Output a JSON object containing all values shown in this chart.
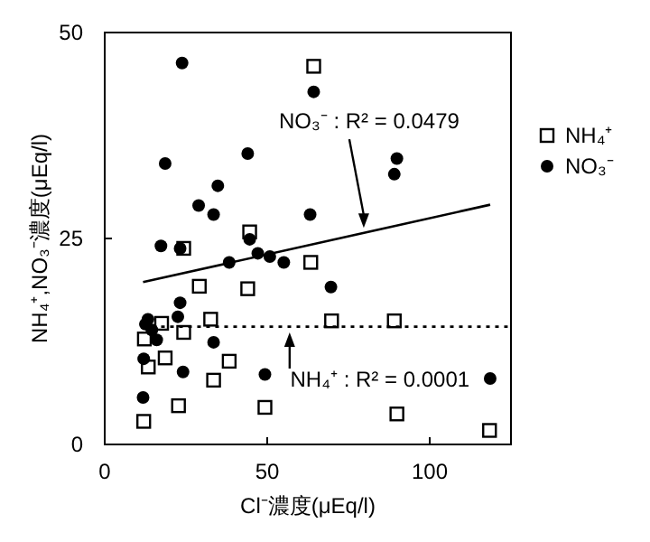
{
  "chart_data": {
    "type": "scatter",
    "xlabel": "Cl⁻濃度(μEq/l)",
    "ylabel": "NH₄⁺,NO₃⁻濃度(μEq/l)",
    "xlim": [
      0,
      125
    ],
    "ylim": [
      0,
      50
    ],
    "xticks": [
      0,
      50,
      100
    ],
    "yticks": [
      0,
      25,
      50
    ],
    "grid": false,
    "legend": "right",
    "series": [
      {
        "name": "NH₄⁺",
        "color": "#000000",
        "marker": "square",
        "x": [
          64.3,
          44.6,
          24.3,
          63.4,
          29.1,
          44,
          17.5,
          32.6,
          69.8,
          89.1,
          24.3,
          12.2,
          18.6,
          13.4,
          38.3,
          33.5,
          22.7,
          49.3,
          89.9,
          12,
          118.4
        ],
        "values": [
          45.9,
          25.8,
          23.8,
          22.1,
          19.2,
          18.9,
          14.7,
          15.2,
          15,
          15,
          13.6,
          12.8,
          10.5,
          9.4,
          10.1,
          7.8,
          4.7,
          4.5,
          3.7,
          2.8,
          1.7
        ]
      },
      {
        "name": "NO₃⁻",
        "color": "#000000",
        "marker": "circle",
        "x": [
          23.8,
          64.3,
          18.6,
          44,
          89.9,
          89.1,
          34.8,
          28.9,
          33.5,
          63.2,
          17.3,
          23.2,
          44.6,
          38.3,
          47.1,
          50.8,
          55.1,
          69.6,
          23.2,
          22.5,
          13.3,
          12.5,
          14.5,
          16,
          33.5,
          12,
          24.1,
          49.3,
          118.6,
          11.8
        ],
        "values": [
          46.3,
          42.8,
          34.1,
          35.3,
          34.7,
          32.8,
          31.4,
          29,
          27.9,
          27.9,
          24.1,
          23.8,
          24.9,
          22.1,
          23.2,
          22.8,
          22.1,
          19.1,
          17.2,
          15.5,
          15.2,
          14.6,
          13.9,
          12.7,
          12.4,
          10.4,
          8.8,
          8.5,
          8,
          5.7
        ]
      },
      {
        "type": "line",
        "color": "#000000",
        "line_style": "solid",
        "x": [
          11.8,
          118.6
        ],
        "values": [
          19.7,
          29.1
        ]
      },
      {
        "type": "line",
        "color": "#000000",
        "line_style": "dotted",
        "x": [
          11.8,
          124
        ],
        "values": [
          14.3,
          14.3
        ]
      }
    ],
    "annotations": [
      {
        "text": "NO₃⁻ : R² = 0.0479",
        "x": 79.7,
        "y": 26.3
      },
      {
        "text": "NH₄⁺ : R² = 0.0001",
        "x": 56.9,
        "y": 13.6
      }
    ]
  }
}
